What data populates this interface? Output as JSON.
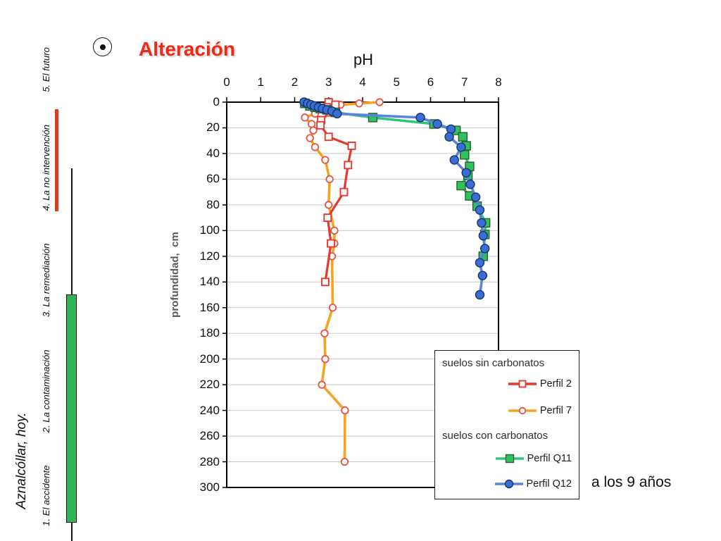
{
  "slide": {
    "title": "Alteración",
    "title_color": "#EE2A16",
    "bullet_icon": "circled-dot-icon",
    "annotation": "a los 9 años"
  },
  "sidebar": {
    "footer_title": "Aznalcóllar, hoy.",
    "items": [
      "1. El accidente",
      "2. La contaminación",
      "3. La remediación",
      "4. La no intervención",
      "5. El futuro"
    ],
    "highlight_bar_color": "#D6401F",
    "progress_bar_color": "#2FB457",
    "timeline_color": "#111111"
  },
  "chart_data": {
    "type": "line",
    "title": "pH",
    "xlabel": "pH",
    "ylabel": "profundidad,  cm",
    "xlim": [
      0,
      8
    ],
    "ylim": [
      0,
      300
    ],
    "x_axis_position": "top",
    "y_axis_inverted": true,
    "x_ticks": [
      0,
      1,
      2,
      3,
      4,
      5,
      6,
      7,
      8
    ],
    "y_ticks": [
      0,
      20,
      40,
      60,
      80,
      100,
      120,
      140,
      160,
      180,
      200,
      220,
      240,
      260,
      280,
      300
    ],
    "grid": "horizontal",
    "grid_color": "#c8c8c8",
    "legend": {
      "group1": "suelos sin carbonatos",
      "group2": "suelos con carbonatos",
      "position": "bottom-right"
    },
    "series": [
      {
        "id": "perfil-2",
        "label": "Perfil 2",
        "group": "suelos sin carbonatos",
        "marker": "open-square",
        "line_color": "#E5392C",
        "marker_edge": "#E5392C",
        "marker_fill": "#FFFFFF",
        "marker_size": 10,
        "line_width": 3.2,
        "points_ph_depth": [
          [
            3.0,
            0
          ],
          [
            3.2,
            2
          ],
          [
            2.95,
            4
          ],
          [
            3.05,
            8
          ],
          [
            2.78,
            14
          ],
          [
            2.76,
            18
          ],
          [
            3.0,
            27
          ],
          [
            3.68,
            34
          ],
          [
            3.57,
            49
          ],
          [
            3.45,
            70
          ],
          [
            2.97,
            90
          ],
          [
            3.07,
            110
          ],
          [
            2.9,
            140
          ]
        ]
      },
      {
        "id": "perfil-7",
        "label": "Perfil 7",
        "group": "suelos sin carbonatos",
        "marker": "open-circle",
        "line_color": "#F6A41E",
        "marker_edge": "#E85848",
        "marker_fill": "#FFFFFF",
        "marker_size": 9.5,
        "line_width": 3.6,
        "points_ph_depth": [
          [
            4.5,
            0
          ],
          [
            3.9,
            1
          ],
          [
            3.35,
            2
          ],
          [
            3.0,
            4
          ],
          [
            2.6,
            9
          ],
          [
            2.3,
            12
          ],
          [
            2.5,
            17
          ],
          [
            2.55,
            22
          ],
          [
            2.45,
            28
          ],
          [
            2.6,
            35
          ],
          [
            2.9,
            45
          ],
          [
            3.03,
            60
          ],
          [
            3.0,
            80
          ],
          [
            3.17,
            100
          ],
          [
            3.17,
            110
          ],
          [
            3.1,
            120
          ],
          [
            3.12,
            160
          ],
          [
            2.88,
            180
          ],
          [
            2.9,
            200
          ],
          [
            2.8,
            220
          ],
          [
            3.48,
            240
          ],
          [
            3.47,
            280
          ]
        ]
      },
      {
        "id": "perfil-q11",
        "label": "Perfil Q11",
        "group": "suelos con carbonatos",
        "marker": "filled-square",
        "line_color": "#2BC87A",
        "marker_edge": "#2F5D35",
        "marker_fill": "#2EC35C",
        "marker_size": 12,
        "line_width": 3.6,
        "points_ph_depth": [
          [
            2.3,
            1
          ],
          [
            2.45,
            3
          ],
          [
            2.6,
            4
          ],
          [
            2.75,
            5
          ],
          [
            2.95,
            6
          ],
          [
            3.2,
            8
          ],
          [
            4.3,
            12
          ],
          [
            6.1,
            17
          ],
          [
            6.75,
            22
          ],
          [
            6.95,
            27
          ],
          [
            7.05,
            34
          ],
          [
            7.0,
            41
          ],
          [
            7.15,
            50
          ],
          [
            7.1,
            57
          ],
          [
            6.9,
            65
          ],
          [
            7.15,
            73
          ],
          [
            7.37,
            81
          ],
          [
            7.62,
            94
          ],
          [
            7.6,
            103
          ],
          [
            7.55,
            120
          ]
        ]
      },
      {
        "id": "perfil-q12",
        "label": "Perfil Q12",
        "group": "suelos con carbonatos",
        "marker": "filled-circle",
        "line_color": "#5B82E0",
        "marker_edge": "#16356B",
        "marker_fill": "#3B6ED5",
        "marker_size": 12,
        "line_width": 3.6,
        "points_ph_depth": [
          [
            2.28,
            0
          ],
          [
            2.38,
            1
          ],
          [
            2.48,
            2
          ],
          [
            2.58,
            3
          ],
          [
            2.7,
            4
          ],
          [
            2.82,
            5
          ],
          [
            2.95,
            6
          ],
          [
            3.1,
            7
          ],
          [
            3.25,
            9
          ],
          [
            5.7,
            12
          ],
          [
            6.2,
            17
          ],
          [
            6.6,
            21
          ],
          [
            6.55,
            27
          ],
          [
            6.9,
            35
          ],
          [
            6.7,
            45
          ],
          [
            7.05,
            55
          ],
          [
            7.17,
            64
          ],
          [
            7.33,
            74
          ],
          [
            7.45,
            84
          ],
          [
            7.5,
            94
          ],
          [
            7.55,
            104
          ],
          [
            7.6,
            114
          ],
          [
            7.45,
            125
          ],
          [
            7.53,
            135
          ],
          [
            7.45,
            150
          ]
        ]
      }
    ]
  }
}
